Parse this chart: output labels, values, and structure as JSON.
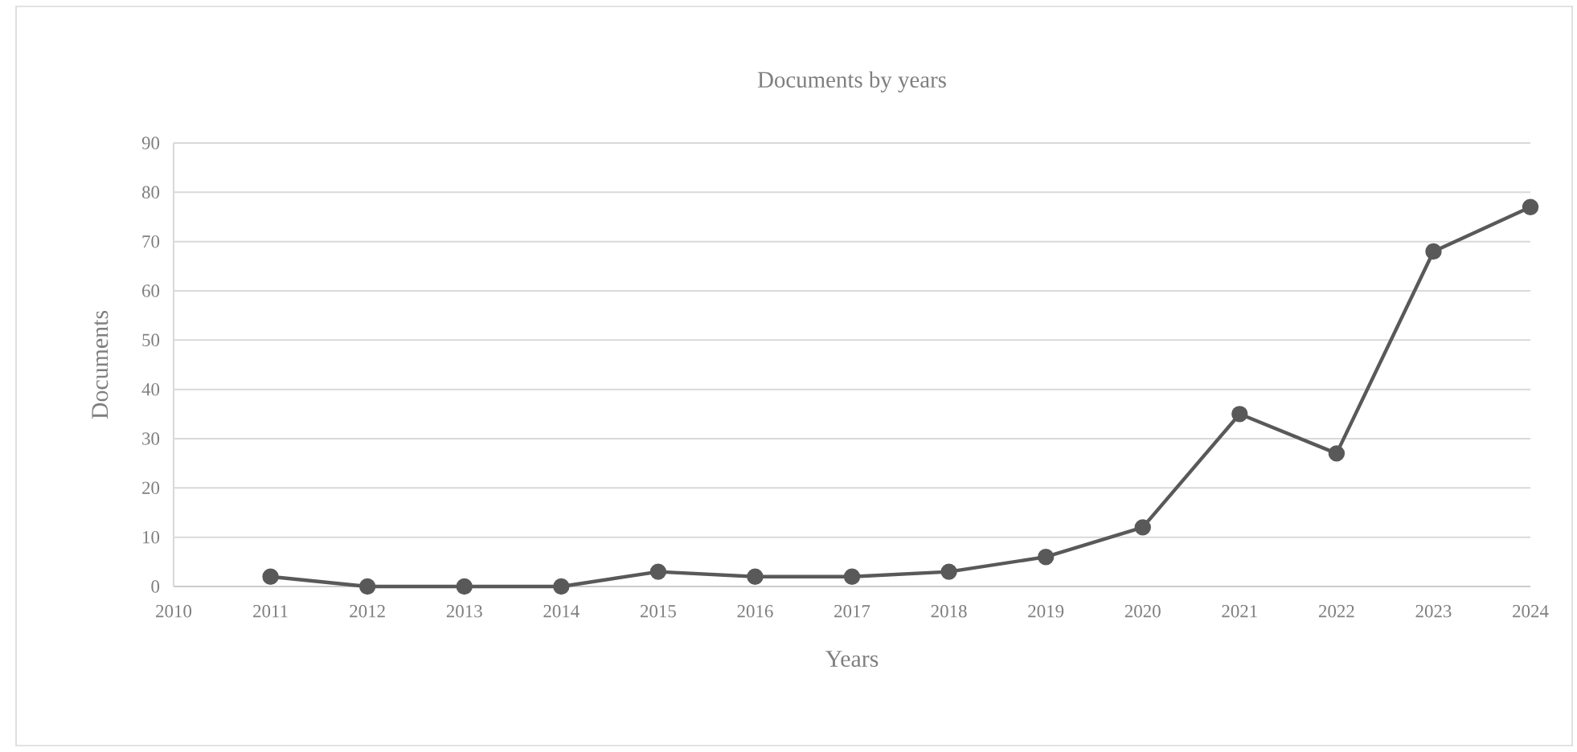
{
  "chart_data": {
    "type": "line",
    "title": "Documents by years",
    "xlabel": "Years",
    "ylabel": "Documents",
    "x": [
      2011,
      2012,
      2013,
      2014,
      2015,
      2016,
      2017,
      2018,
      2019,
      2020,
      2021,
      2022,
      2023,
      2024
    ],
    "series": [
      {
        "color": "#595959",
        "values": [
          2,
          0,
          0,
          0,
          3,
          2,
          2,
          3,
          6,
          12,
          35,
          27,
          68,
          77
        ]
      }
    ],
    "xlim": [
      2010,
      2024
    ],
    "xticks": [
      2010,
      2011,
      2012,
      2013,
      2014,
      2015,
      2016,
      2017,
      2018,
      2019,
      2020,
      2021,
      2022,
      2023,
      2024
    ],
    "ylim": [
      0,
      90
    ],
    "yticks": [
      0,
      10,
      20,
      30,
      40,
      50,
      60,
      70,
      80,
      90
    ],
    "grid": "y",
    "marker": "circle",
    "line_style": "solid"
  }
}
